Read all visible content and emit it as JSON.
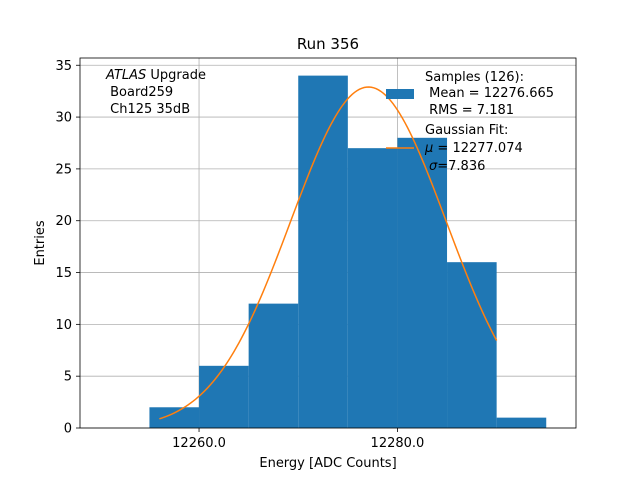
{
  "chart_data": {
    "type": "histogram",
    "title": "Run 356",
    "xlabel": "Energy [ADC Counts]",
    "ylabel": "Entries",
    "xlim": [
      12248,
      12298
    ],
    "ylim": [
      0,
      35.7
    ],
    "xticks": [
      12260,
      12280
    ],
    "xtick_labels": [
      "12260.0",
      "12280.0"
    ],
    "yticks": [
      0,
      5,
      10,
      15,
      20,
      25,
      30,
      35
    ],
    "ytick_labels": [
      "0",
      "5",
      "10",
      "15",
      "20",
      "25",
      "30",
      "35"
    ],
    "grid": true,
    "bin_edges": [
      12255,
      12260,
      12265,
      12270,
      12275,
      12280,
      12285,
      12290,
      12295
    ],
    "counts": [
      2,
      6,
      12,
      34,
      27,
      28,
      16,
      1
    ],
    "bar_color": "#1f77b4",
    "fit": {
      "name": "Gaussian Fit",
      "mu": 12277.074,
      "sigma": 7.836,
      "amplitude": 32.9,
      "x_range": [
        12256,
        12290
      ],
      "color": "#ff7f0e"
    },
    "annotation": {
      "italic": "ATLAS",
      "line1_rest": " Upgrade",
      "line2": " Board259",
      "line3": " Ch125 35dB"
    },
    "legend": {
      "position": "top-right",
      "samples_l1": "Samples (126):",
      "samples_l2": " Mean = 12276.665",
      "samples_l3": " RMS = 7.181",
      "fit_l1": "Gaussian Fit:",
      "fit_mu_sym": "μ",
      "fit_mu_rest": " = 12277.074",
      "fit_sigma_sym": "σ",
      "fit_sigma_rest": "=7.836"
    }
  }
}
